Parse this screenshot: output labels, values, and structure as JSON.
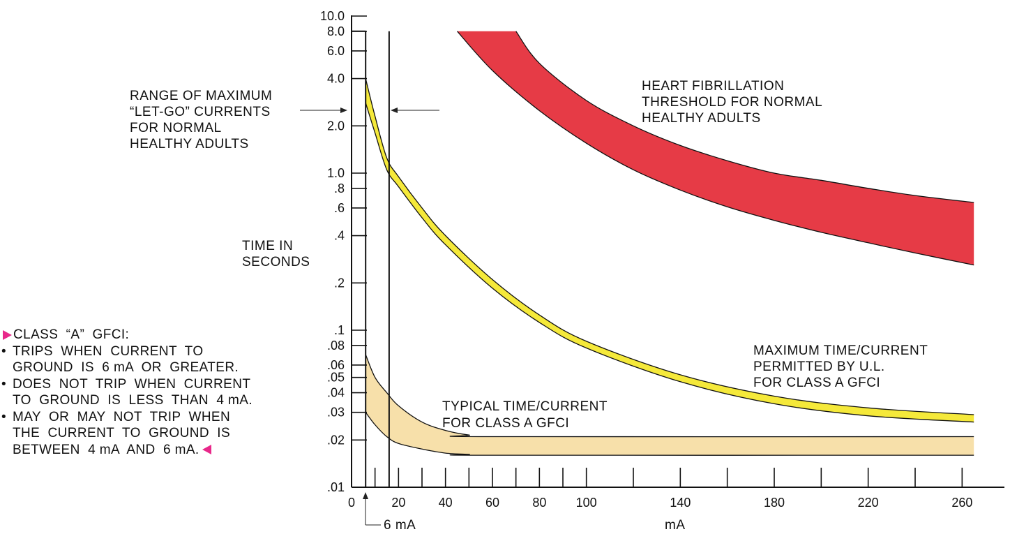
{
  "chart_data": {
    "type": "area",
    "xlabel": "mA",
    "ylabel": "TIME IN\nSECONDS",
    "xlim": [
      0,
      270
    ],
    "ylim": [
      0.01,
      10
    ],
    "y_scale": "log",
    "x_ticks": [
      0,
      20,
      40,
      60,
      80,
      100,
      140,
      180,
      220,
      260
    ],
    "x_tick_labels": [
      "0",
      "20",
      "40",
      "60",
      "80",
      "100",
      "140",
      "180",
      "220",
      "260"
    ],
    "x_minor_ticks": [
      10,
      30,
      50,
      70,
      90,
      120,
      160,
      200,
      240
    ],
    "y_ticks": [
      10,
      8,
      6,
      4,
      2,
      1,
      0.8,
      0.6,
      0.4,
      0.2,
      0.1,
      0.08,
      0.06,
      0.05,
      0.04,
      0.03,
      0.02,
      0.01
    ],
    "y_tick_labels": [
      "10.0",
      "8.0",
      "6.0",
      "4.0",
      "2.0",
      "1.0",
      ".8",
      ".6",
      ".4",
      ".2",
      ".1",
      ".08",
      ".06",
      ".05",
      ".04",
      ".03",
      ".02",
      ".01"
    ],
    "vertical_lines": [
      {
        "x": 10,
        "y_top": 8.0,
        "label": ""
      }
    ],
    "series": [
      {
        "name": "HEART FIBRILLATION THRESHOLD FOR NORMAL HEALTHY ADULTS",
        "color": "#e63b46",
        "upper": {
          "x": [
            70,
            80,
            100,
            120,
            140,
            160,
            180,
            200,
            220,
            240,
            265
          ],
          "y": [
            8.0,
            5.0,
            2.9,
            2.0,
            1.5,
            1.2,
            1.0,
            0.9,
            0.8,
            0.72,
            0.65
          ]
        },
        "lower": {
          "x": [
            45,
            60,
            80,
            100,
            120,
            140,
            160,
            180,
            200,
            220,
            240,
            265
          ],
          "y": [
            8.0,
            4.5,
            2.5,
            1.55,
            1.05,
            0.78,
            0.61,
            0.5,
            0.42,
            0.36,
            0.31,
            0.26
          ]
        }
      },
      {
        "name": "MAXIMUM TIME/CURRENT PERMITTED BY U.L. FOR CLASS A GFCI",
        "color": "#f5e93a",
        "upper": {
          "x": [
            6,
            10,
            15,
            20,
            30,
            40,
            60,
            80,
            100,
            140,
            180,
            220,
            265
          ],
          "y": [
            4.0,
            2.3,
            1.25,
            0.95,
            0.6,
            0.4,
            0.21,
            0.125,
            0.085,
            0.052,
            0.038,
            0.032,
            0.029
          ]
        },
        "lower": {
          "x": [
            6,
            10,
            15,
            20,
            30,
            40,
            60,
            80,
            100,
            140,
            180,
            220,
            265
          ],
          "y": [
            2.8,
            1.8,
            1.05,
            0.82,
            0.52,
            0.35,
            0.185,
            0.112,
            0.077,
            0.047,
            0.034,
            0.0285,
            0.026
          ]
        }
      },
      {
        "name": "TYPICAL TIME/CURRENT FOR CLASS A GFCI",
        "color": "#f7e0aa",
        "upper": {
          "x": [
            6,
            10,
            15,
            20,
            30,
            40,
            50,
            60,
            265
          ],
          "y": [
            0.07,
            0.05,
            0.04,
            0.033,
            0.026,
            0.023,
            0.0215,
            0.021,
            0.021
          ]
        },
        "lower": {
          "x": [
            6,
            10,
            15,
            20,
            30,
            40,
            50,
            60,
            265
          ],
          "y": [
            0.03,
            0.025,
            0.021,
            0.019,
            0.0175,
            0.0165,
            0.0162,
            0.016,
            0.016
          ]
        }
      }
    ],
    "annotations": [
      {
        "lines": [
          "RANGE OF MAXIMUM",
          "“LET-GO” CURRENTS",
          "FOR NORMAL",
          "HEALTHY ADULTS"
        ]
      },
      {
        "lines": [
          "HEART FIBRILLATION",
          "THRESHOLD FOR NORMAL",
          "HEALTHY ADULTS"
        ]
      },
      {
        "lines": [
          "MAXIMUM TIME/CURRENT",
          "PERMITTED BY U.L.",
          "FOR CLASS A GFCI"
        ]
      },
      {
        "lines": [
          "TYPICAL TIME/CURRENT",
          "FOR CLASS A GFCI"
        ]
      },
      {
        "lines": [
          "6 mA"
        ]
      }
    ]
  },
  "notes": {
    "ylabel_line1": "TIME  IN",
    "ylabel_line2": "SECONDS",
    "xlabel": "mA",
    "let_go_1": "RANGE  OF  MAXIMUM",
    "let_go_2": "“LET-GO”  CURRENTS",
    "let_go_3": "FOR  NORMAL",
    "let_go_4": "HEALTHY  ADULTS",
    "heart_1": "HEART  FIBRILLATION",
    "heart_2": "THRESHOLD  FOR  NORMAL",
    "heart_3": "HEALTHY  ADULTS",
    "max_1": "MAXIMUM  TIME/CURRENT",
    "max_2": "PERMITTED  BY  U.L.",
    "max_3": "FOR  CLASS  A  GFCI",
    "typ_1": "TYPICAL  TIME/CURRENT",
    "typ_2": "FOR  CLASS  A  GFCI",
    "six_ma": "6 mA"
  },
  "gfci_box": {
    "title": "CLASS  “A”  GFCI:",
    "bullet": "•",
    "b1_line1": "TRIPS  WHEN  CURRENT  TO",
    "b1_line2": "GROUND  IS  6 mA  OR  GREATER.",
    "b2_line1": "DOES  NOT  TRIP  WHEN  CURRENT",
    "b2_line2": "TO  GROUND  IS  LESS  THAN  4 mA.",
    "b3_line1": "MAY  OR  MAY  NOT  TRIP  WHEN",
    "b3_line2": "THE  CURRENT  TO  GROUND  IS",
    "b3_line3": "BETWEEN  4 mA  AND  6 mA.",
    "marker_color": "#e8288a"
  }
}
